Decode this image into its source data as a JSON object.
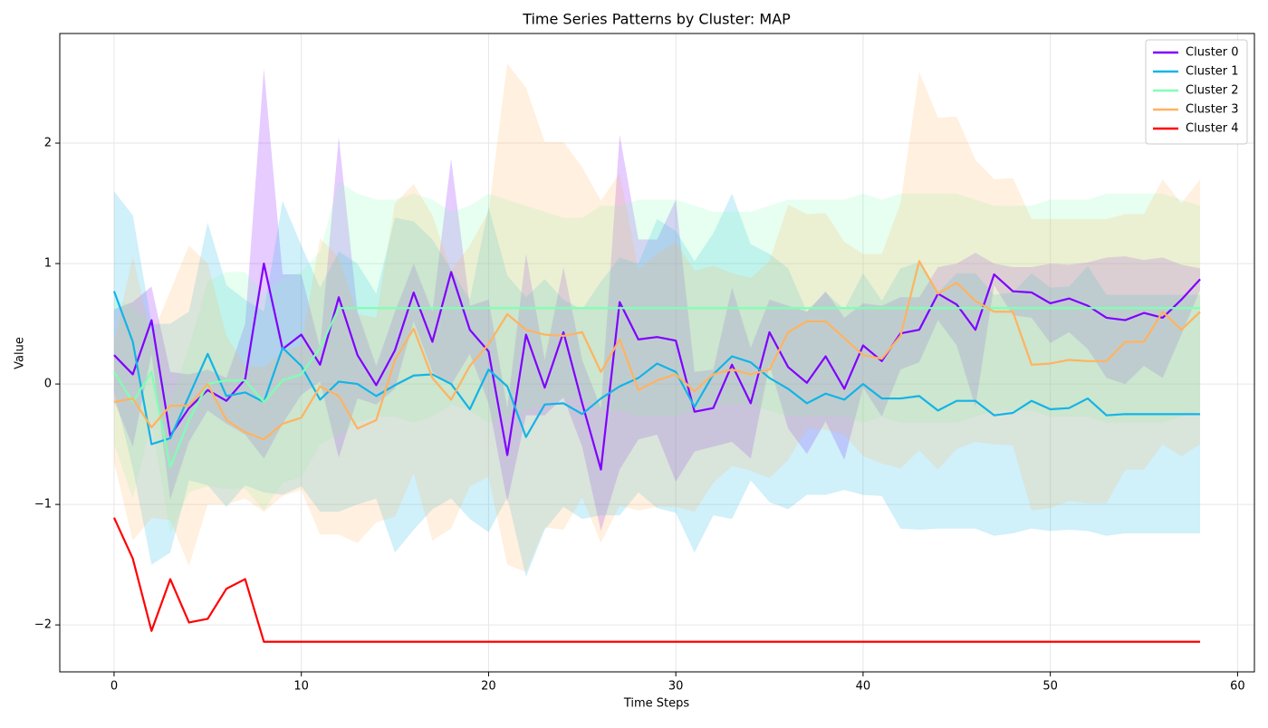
{
  "chart_data": {
    "type": "line",
    "title": "Time Series Patterns by Cluster: MAP",
    "x_label": "Time Steps",
    "y_label": "Value",
    "x": [
      0,
      1,
      2,
      3,
      4,
      5,
      6,
      7,
      8,
      9,
      10,
      11,
      12,
      13,
      14,
      15,
      16,
      17,
      18,
      19,
      20,
      21,
      22,
      23,
      24,
      25,
      26,
      27,
      28,
      29,
      30,
      31,
      32,
      33,
      34,
      35,
      36,
      37,
      38,
      39,
      40,
      41,
      42,
      43,
      44,
      45,
      46,
      47,
      48,
      49,
      50,
      51,
      52,
      53,
      54,
      55,
      56,
      57,
      58
    ],
    "xlim": [
      -2.9,
      60.9
    ],
    "xticks": [
      0,
      10,
      20,
      30,
      40,
      50,
      60
    ],
    "ylim": [
      -2.39,
      2.91
    ],
    "yticks": [
      {
        "value": -2,
        "label": "−2"
      },
      {
        "value": -1,
        "label": "−1"
      },
      0,
      1,
      2
    ],
    "grid": true,
    "legend": "upper right",
    "band_opacity": 0.2,
    "series": [
      {
        "name": "Cluster 0",
        "color": "#8000ff",
        "values": [
          0.24,
          0.08,
          0.53,
          -0.43,
          -0.2,
          -0.05,
          -0.14,
          0.04,
          1.0,
          0.29,
          0.41,
          0.16,
          0.72,
          0.24,
          -0.01,
          0.28,
          0.76,
          0.35,
          0.93,
          0.45,
          0.27,
          -0.59,
          0.41,
          -0.03,
          0.43,
          -0.16,
          -0.71,
          0.68,
          0.37,
          0.39,
          0.36,
          -0.23,
          -0.2,
          0.16,
          -0.16,
          0.43,
          0.14,
          0.01,
          0.23,
          -0.04,
          0.32,
          0.19,
          0.42,
          0.45,
          0.75,
          0.66,
          0.45,
          0.91,
          0.77,
          0.76,
          0.67,
          0.71,
          0.65,
          0.55,
          0.53,
          0.59,
          0.55,
          0.7,
          0.87
        ],
        "std": [
          0.38,
          0.6,
          0.28,
          0.53,
          0.28,
          0.17,
          0.19,
          0.46,
          1.62,
          0.62,
          0.5,
          0.14,
          1.33,
          0.36,
          0.16,
          0.32,
          0.24,
          0.25,
          0.94,
          0.2,
          0.43,
          0.39,
          0.67,
          0.23,
          0.54,
          0.36,
          0.51,
          1.39,
          0.83,
          0.81,
          1.17,
          0.33,
          0.32,
          0.64,
          0.46,
          0.27,
          0.51,
          0.59,
          0.54,
          0.59,
          0.35,
          0.46,
          0.3,
          0.27,
          0.22,
          0.34,
          0.64,
          0.09,
          0.2,
          0.21,
          0.33,
          0.28,
          0.36,
          0.5,
          0.53,
          0.44,
          0.5,
          0.29,
          0.09
        ]
      },
      {
        "name": "Cluster 1",
        "color": "#12b4e6",
        "values": [
          0.77,
          0.35,
          -0.5,
          -0.45,
          -0.1,
          0.25,
          -0.1,
          -0.07,
          -0.15,
          0.3,
          0.15,
          -0.13,
          0.02,
          0.0,
          -0.1,
          -0.01,
          0.07,
          0.08,
          0.0,
          -0.21,
          0.12,
          -0.02,
          -0.44,
          -0.17,
          -0.16,
          -0.25,
          -0.12,
          -0.02,
          0.05,
          0.17,
          0.1,
          -0.19,
          0.08,
          0.23,
          0.18,
          0.05,
          -0.04,
          -0.16,
          -0.08,
          -0.13,
          0.0,
          -0.12,
          -0.12,
          -0.1,
          -0.22,
          -0.14,
          -0.14,
          -0.26,
          -0.24,
          -0.14,
          -0.21,
          -0.2,
          -0.12,
          -0.26,
          -0.25,
          -0.25,
          -0.25,
          -0.25,
          -0.25
        ],
        "std": [
          0.83,
          1.05,
          1.0,
          0.95,
          0.7,
          1.09,
          0.92,
          0.77,
          0.75,
          1.22,
          1.0,
          0.93,
          1.08,
          1.0,
          0.85,
          1.39,
          1.28,
          1.12,
          0.95,
          0.91,
          1.35,
          0.92,
          1.16,
          1.04,
          0.86,
          0.87,
          0.97,
          1.07,
          0.95,
          1.2,
          1.17,
          1.21,
          1.17,
          1.35,
          0.98,
          1.03,
          1.0,
          0.76,
          0.84,
          0.75,
          0.92,
          0.81,
          1.08,
          1.11,
          0.98,
          1.06,
          1.06,
          1.0,
          1.0,
          1.06,
          1.01,
          1.01,
          1.1,
          1.0,
          0.99,
          0.99,
          0.99,
          0.99,
          0.99
        ]
      },
      {
        "name": "Cluster 2",
        "color": "#80ffb4",
        "values": [
          0.1,
          -0.15,
          0.1,
          -0.69,
          -0.3,
          0.0,
          0.03,
          0.03,
          -0.15,
          0.03,
          0.08,
          0.3,
          0.63,
          0.63,
          0.63,
          0.63,
          0.63,
          0.63,
          0.63,
          0.63,
          0.63,
          0.63,
          0.63,
          0.63,
          0.63,
          0.63,
          0.63,
          0.63,
          0.63,
          0.63,
          0.63,
          0.63,
          0.63,
          0.63,
          0.63,
          0.63,
          0.63,
          0.63,
          0.63,
          0.63,
          0.63,
          0.63,
          0.63,
          0.63,
          0.63,
          0.63,
          0.63,
          0.63,
          0.63,
          0.63,
          0.63,
          0.63,
          0.63,
          0.63,
          0.63,
          0.63,
          0.63,
          0.63,
          0.63
        ],
        "std": [
          0.6,
          0.8,
          0.4,
          0.55,
          0.6,
          0.85,
          0.9,
          0.9,
          0.9,
          0.85,
          0.85,
          0.8,
          1.05,
          0.95,
          0.9,
          0.9,
          0.95,
          0.9,
          0.8,
          0.85,
          0.95,
          0.9,
          0.85,
          0.8,
          0.75,
          0.75,
          0.85,
          0.85,
          0.9,
          0.9,
          0.9,
          0.85,
          0.8,
          0.8,
          0.8,
          0.85,
          0.9,
          0.9,
          0.9,
          0.9,
          0.95,
          0.9,
          0.95,
          0.95,
          0.95,
          0.95,
          0.9,
          0.85,
          0.85,
          0.85,
          0.9,
          0.9,
          0.9,
          0.95,
          0.95,
          0.95,
          0.95,
          0.9,
          0.85
        ]
      },
      {
        "name": "Cluster 3",
        "color": "#ffb360",
        "values": [
          -0.15,
          -0.12,
          -0.36,
          -0.18,
          -0.18,
          0.0,
          -0.3,
          -0.4,
          -0.46,
          -0.33,
          -0.28,
          -0.02,
          -0.1,
          -0.37,
          -0.3,
          0.2,
          0.46,
          0.05,
          -0.13,
          0.15,
          0.33,
          0.58,
          0.45,
          0.41,
          0.4,
          0.43,
          0.1,
          0.37,
          -0.05,
          0.03,
          0.08,
          -0.06,
          0.08,
          0.12,
          0.08,
          0.12,
          0.43,
          0.52,
          0.52,
          0.38,
          0.24,
          0.21,
          0.4,
          1.02,
          0.75,
          0.84,
          0.69,
          0.6,
          0.6,
          0.16,
          0.17,
          0.2,
          0.19,
          0.19,
          0.35,
          0.35,
          0.6,
          0.45,
          0.6
        ],
        "std": [
          0.5,
          1.18,
          0.75,
          0.95,
          1.33,
          1.0,
          0.7,
          0.55,
          0.6,
          0.6,
          0.6,
          1.23,
          1.15,
          0.95,
          0.85,
          1.3,
          1.2,
          1.35,
          1.07,
          1.0,
          1.1,
          2.08,
          2.01,
          1.6,
          1.61,
          1.37,
          1.42,
          1.38,
          1.0,
          1.05,
          1.1,
          1.0,
          0.9,
          0.8,
          0.8,
          0.9,
          1.06,
          0.89,
          0.9,
          0.8,
          0.84,
          0.87,
          1.1,
          1.57,
          1.46,
          1.38,
          1.17,
          1.1,
          1.11,
          1.21,
          1.2,
          1.17,
          1.18,
          1.18,
          1.06,
          1.06,
          1.1,
          1.05,
          1.1
        ]
      },
      {
        "name": "Cluster 4",
        "color": "#ff0000",
        "values": [
          -1.11,
          -1.45,
          -2.05,
          -1.62,
          -1.98,
          -1.95,
          -1.7,
          -1.62,
          -2.14,
          -2.14,
          -2.14,
          -2.14,
          -2.14,
          -2.14,
          -2.14,
          -2.14,
          -2.14,
          -2.14,
          -2.14,
          -2.14,
          -2.14,
          -2.14,
          -2.14,
          -2.14,
          -2.14,
          -2.14,
          -2.14,
          -2.14,
          -2.14,
          -2.14,
          -2.14,
          -2.14,
          -2.14,
          -2.14,
          -2.14,
          -2.14,
          -2.14,
          -2.14,
          -2.14,
          -2.14,
          -2.14,
          -2.14,
          -2.14,
          -2.14,
          -2.14,
          -2.14,
          -2.14,
          -2.14,
          -2.14,
          -2.14,
          -2.14,
          -2.14,
          -2.14,
          -2.14,
          -2.14,
          -2.14,
          -2.14,
          -2.14,
          -2.14
        ]
      }
    ]
  }
}
